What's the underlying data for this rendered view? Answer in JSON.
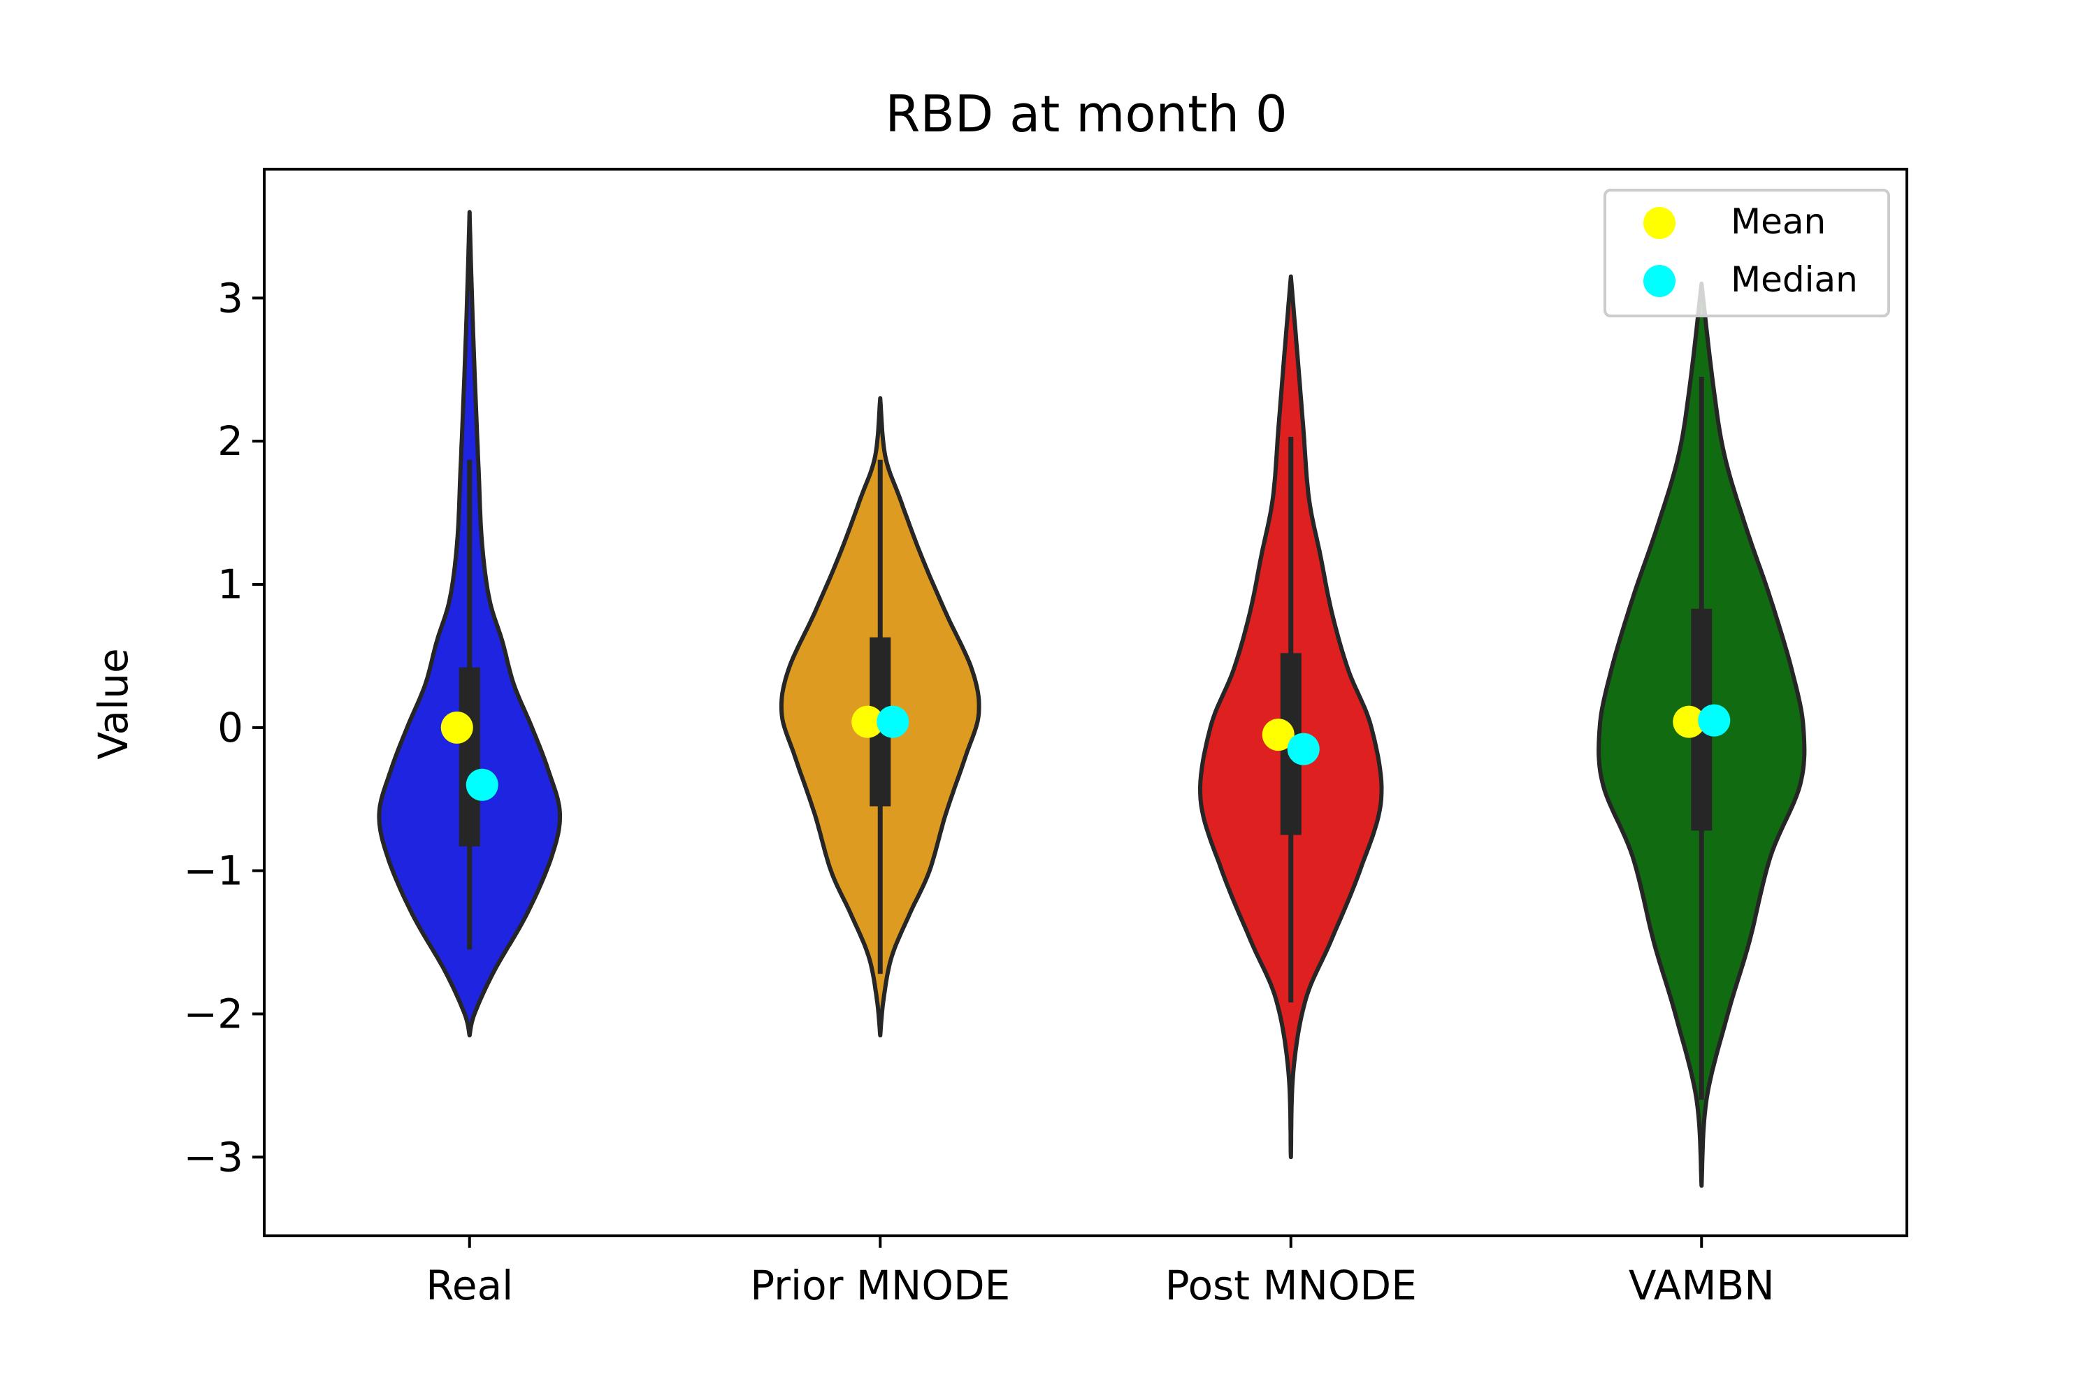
{
  "chart_data": {
    "type": "violin",
    "title": "RBD at month 0",
    "xlabel": "",
    "ylabel": "Value",
    "ylim": [
      -3.55,
      3.9
    ],
    "yticks": [
      3,
      2,
      1,
      0,
      -1,
      -2,
      -3
    ],
    "ytick_labels": [
      "3",
      "2",
      "1",
      "0",
      "−1",
      "−2",
      "−3"
    ],
    "legend": {
      "placement": "top-right",
      "entries": [
        {
          "label": "Mean",
          "color": "#ffff00"
        },
        {
          "label": "Median",
          "color": "#00ffff"
        }
      ]
    },
    "violins": [
      {
        "category": "Real",
        "color": "#1f24e0",
        "range": [
          -2.15,
          3.6
        ],
        "whisker": [
          -1.55,
          1.87
        ],
        "iqr": [
          -0.83,
          0.42
        ],
        "mean": 0.0,
        "median": -0.4,
        "profile": [
          [
            -2.15,
            0.0
          ],
          [
            -2.0,
            0.03
          ],
          [
            -1.7,
            0.15
          ],
          [
            -1.3,
            0.35
          ],
          [
            -0.9,
            0.5
          ],
          [
            -0.6,
            0.55
          ],
          [
            -0.3,
            0.48
          ],
          [
            0.0,
            0.38
          ],
          [
            0.3,
            0.27
          ],
          [
            0.6,
            0.2
          ],
          [
            0.9,
            0.12
          ],
          [
            1.3,
            0.075
          ],
          [
            1.8,
            0.055
          ],
          [
            2.5,
            0.03
          ],
          [
            3.1,
            0.012
          ],
          [
            3.6,
            0.0
          ]
        ]
      },
      {
        "category": "Prior MNODE",
        "color": "#de9b21",
        "range": [
          -2.15,
          2.3
        ],
        "whisker": [
          -1.72,
          1.87
        ],
        "iqr": [
          -0.55,
          0.63
        ],
        "mean": 0.04,
        "median": 0.04,
        "profile": [
          [
            -2.15,
            0.0
          ],
          [
            -1.9,
            0.02
          ],
          [
            -1.6,
            0.07
          ],
          [
            -1.3,
            0.18
          ],
          [
            -1.0,
            0.3
          ],
          [
            -0.6,
            0.4
          ],
          [
            -0.2,
            0.52
          ],
          [
            0.1,
            0.6
          ],
          [
            0.4,
            0.56
          ],
          [
            0.8,
            0.4
          ],
          [
            1.2,
            0.25
          ],
          [
            1.6,
            0.12
          ],
          [
            1.9,
            0.03
          ],
          [
            2.3,
            0.0
          ]
        ]
      },
      {
        "category": "Post MNODE",
        "color": "#df2020",
        "range": [
          -3.0,
          3.15
        ],
        "whisker": [
          -1.92,
          2.03
        ],
        "iqr": [
          -0.75,
          0.52
        ],
        "mean": -0.05,
        "median": -0.15,
        "profile": [
          [
            -3.0,
            0.0
          ],
          [
            -2.4,
            0.015
          ],
          [
            -1.9,
            0.09
          ],
          [
            -1.5,
            0.24
          ],
          [
            -1.0,
            0.42
          ],
          [
            -0.5,
            0.55
          ],
          [
            0.0,
            0.49
          ],
          [
            0.4,
            0.35
          ],
          [
            0.8,
            0.25
          ],
          [
            1.2,
            0.18
          ],
          [
            1.6,
            0.11
          ],
          [
            2.1,
            0.075
          ],
          [
            2.6,
            0.04
          ],
          [
            3.15,
            0.0
          ]
        ]
      },
      {
        "category": "VAMBN",
        "color": "#116c11",
        "range": [
          -3.2,
          3.1
        ],
        "whisker": [
          -2.6,
          2.45
        ],
        "iqr": [
          -0.72,
          0.83
        ],
        "mean": 0.04,
        "median": 0.05,
        "profile": [
          [
            -3.2,
            0.0
          ],
          [
            -2.6,
            0.03
          ],
          [
            -2.0,
            0.16
          ],
          [
            -1.5,
            0.29
          ],
          [
            -0.9,
            0.42
          ],
          [
            -0.4,
            0.6
          ],
          [
            0.0,
            0.62
          ],
          [
            0.4,
            0.55
          ],
          [
            0.9,
            0.42
          ],
          [
            1.4,
            0.27
          ],
          [
            1.9,
            0.14
          ],
          [
            2.4,
            0.07
          ],
          [
            3.1,
            0.0
          ]
        ]
      }
    ]
  }
}
